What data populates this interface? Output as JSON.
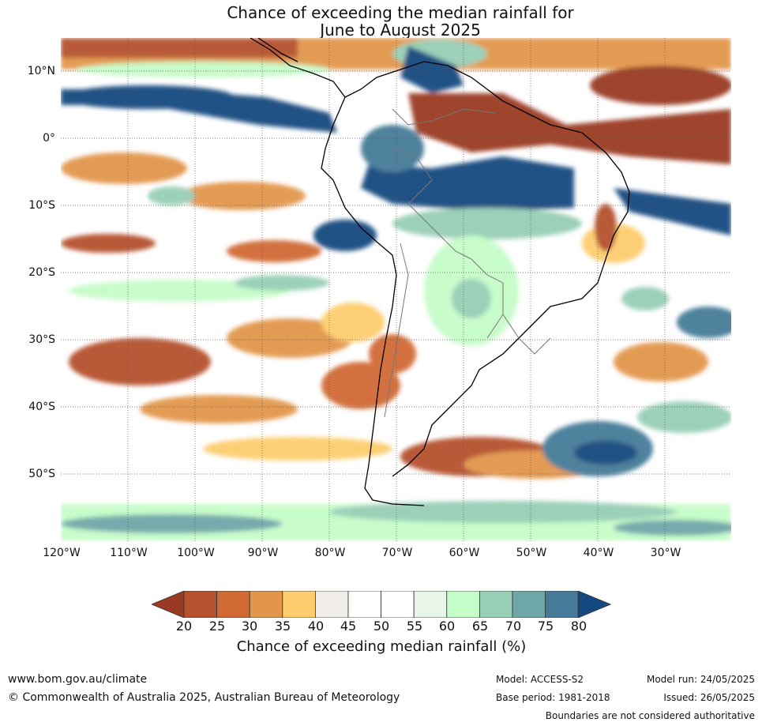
{
  "title": {
    "line1": "Chance of exceeding the median rainfall for",
    "line2": "June to August 2025"
  },
  "map": {
    "lat_labels": [
      "10°N",
      "0°",
      "10°S",
      "20°S",
      "30°S",
      "40°S",
      "50°S"
    ],
    "lon_labels": [
      "120°W",
      "110°W",
      "100°W",
      "90°W",
      "80°W",
      "70°W",
      "60°W",
      "50°W",
      "40°W",
      "30°W"
    ],
    "extent": {
      "lon": [
        -120,
        -20
      ],
      "lat": [
        -60,
        15
      ]
    }
  },
  "colorbar": {
    "label": "Chance of exceeding median rainfall (%)",
    "ticks": [
      "20",
      "25",
      "30",
      "35",
      "40",
      "45",
      "50",
      "55",
      "60",
      "65",
      "70",
      "75",
      "80"
    ],
    "colors": [
      "#9a3a22",
      "#b5512d",
      "#d06a34",
      "#e2964b",
      "#fdcd6e",
      "#f0ede8",
      "#ffffff",
      "#ffffff",
      "#e8f5e9",
      "#c6fcc8",
      "#97ceb5",
      "#6fa6a8",
      "#457b98",
      "#13497f"
    ]
  },
  "footer": {
    "website": "www.bom.gov.au/climate",
    "copyright": "© Commonwealth of Australia 2025, Australian Bureau of Meteorology",
    "model": "Model: ACCESS-S2",
    "base_period": "Base period: 1981-2018",
    "model_run": "Model run: 24/05/2025",
    "issued": "Issued: 26/05/2025",
    "disclaimer": "Boundaries are not considered authoritative"
  }
}
